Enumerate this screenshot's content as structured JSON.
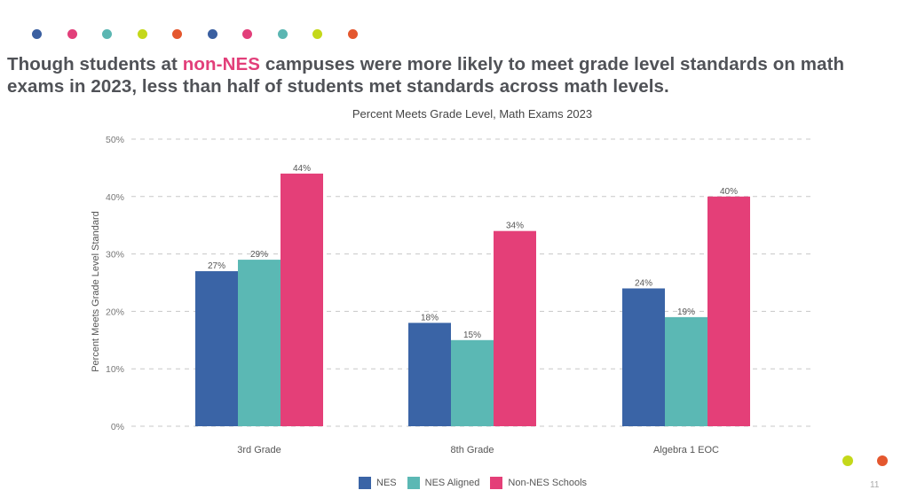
{
  "decor": {
    "top_dots": [
      "#3a5fa0",
      "#e23f7a",
      "#5bb6b2",
      "#c4d81a",
      "#e4572e",
      "#3a5fa0",
      "#e23f7a",
      "#5bb6b2",
      "#c4d81a",
      "#e4572e"
    ],
    "corner_dots": [
      "#c4d81a",
      "#e4572e"
    ]
  },
  "headline": {
    "part1": "Though students at ",
    "highlight": "non-NES",
    "part2": " campuses were more likely to meet grade level standards on math exams in 2023, less than half of students met standards across math levels.",
    "highlight_color": "#e23f7a"
  },
  "page_number": "11",
  "chart_data": {
    "type": "bar",
    "title": "Percent Meets Grade Level, Math Exams 2023",
    "xlabel": "",
    "ylabel": "Percent Meets Grade Level Standard",
    "ylim": [
      0,
      50
    ],
    "yticks": [
      0,
      10,
      20,
      30,
      40,
      50
    ],
    "ytick_labels": [
      "0%",
      "10%",
      "20%",
      "30%",
      "40%",
      "50%"
    ],
    "grid": true,
    "legend_position": "bottom",
    "categories": [
      "3rd Grade",
      "8th Grade",
      "Algebra 1 EOC"
    ],
    "series": [
      {
        "name": "NES",
        "color": "#3a64a6",
        "values": [
          27,
          18,
          24
        ],
        "labels": [
          "27%",
          "18%",
          "24%"
        ]
      },
      {
        "name": "NES Aligned",
        "color": "#5bb8b4",
        "values": [
          29,
          15,
          19
        ],
        "labels": [
          "29%",
          "15%",
          "19%"
        ]
      },
      {
        "name": "Non-NES Schools",
        "color": "#e43f78",
        "values": [
          44,
          34,
          40
        ],
        "labels": [
          "44%",
          "34%",
          "40%"
        ]
      }
    ]
  }
}
